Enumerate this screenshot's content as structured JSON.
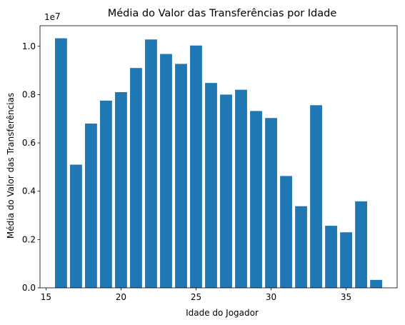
{
  "chart_data": {
    "type": "bar",
    "title": "Média do Valor das Transferências por Idade",
    "xlabel": "Idade do Jogador",
    "ylabel": "Média do Valor das Transferências",
    "y_offset_label": "1e7",
    "x": [
      16,
      17,
      18,
      19,
      20,
      21,
      22,
      23,
      24,
      25,
      26,
      27,
      28,
      29,
      30,
      31,
      32,
      33,
      34,
      35,
      36,
      37
    ],
    "values": [
      10330000,
      5100000,
      6800000,
      7750000,
      8100000,
      9100000,
      10280000,
      9680000,
      9270000,
      10030000,
      8480000,
      8000000,
      8200000,
      7320000,
      7030000,
      4630000,
      3380000,
      7560000,
      2570000,
      2300000,
      3580000,
      330000
    ],
    "xlim": [
      14.6,
      38.4
    ],
    "ylim": [
      0,
      10850000
    ],
    "x_ticks": [
      15,
      20,
      25,
      30,
      35
    ],
    "x_tick_labels": [
      "15",
      "20",
      "25",
      "30",
      "35"
    ],
    "y_ticks": [
      0,
      2000000,
      4000000,
      6000000,
      8000000,
      10000000
    ],
    "y_tick_labels": [
      "0.0",
      "0.2",
      "0.4",
      "0.6",
      "0.8",
      "1.0"
    ],
    "bar_color": "#1f77b4",
    "grid": false
  }
}
